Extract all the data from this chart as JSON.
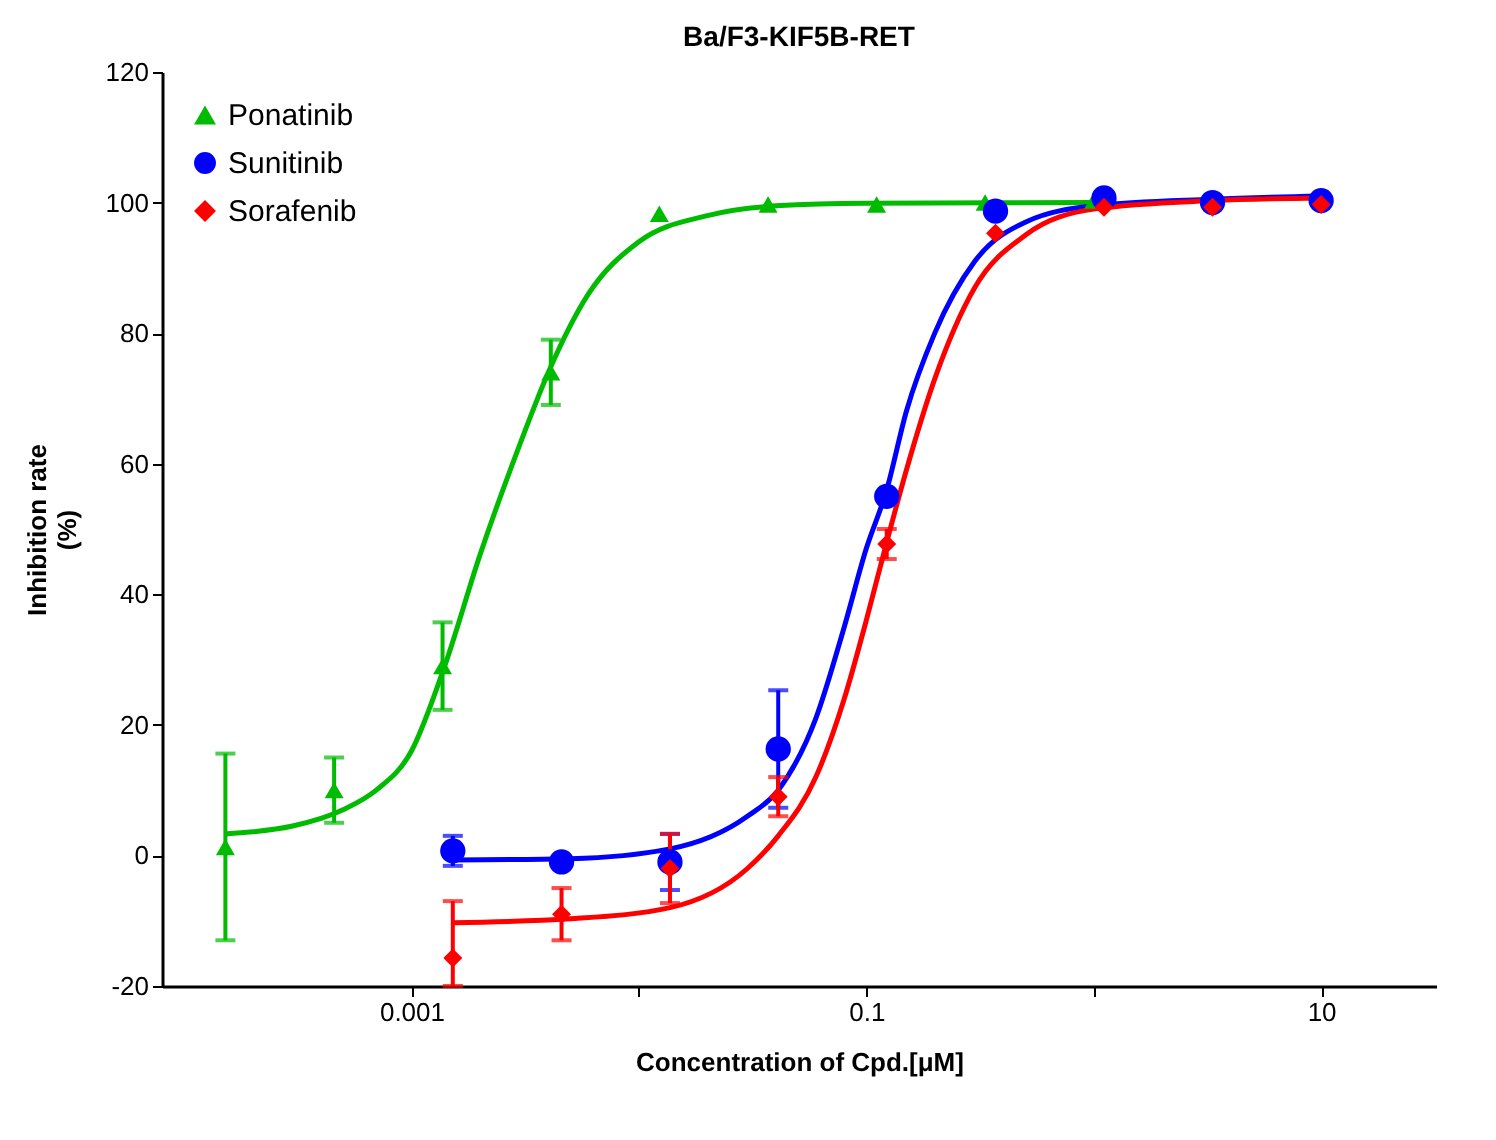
{
  "chart_data": {
    "type": "scatter",
    "title": "Ba/F3-KIF5B-RET",
    "xlabel": "Concentration of Cpd.[μM]",
    "ylabel": "Inhibition rate\n(%)",
    "log": "x",
    "grid": false,
    "legend": "top left",
    "xlim": [
      8e-05,
      32
    ],
    "xticks": [
      0.001,
      {
        "value": 0.01,
        "label": null
      },
      0.1,
      {
        "value": 1,
        "label": null
      },
      10
    ],
    "ylim": [
      -20,
      120
    ],
    "yticks": [
      -20,
      0,
      20,
      40,
      60,
      80,
      100,
      120
    ],
    "series": [
      {
        "name": "Ponatinib",
        "marker": "triangle",
        "color": "#00bb00",
        "x": [
          0.000152,
          0.000457,
          0.00137,
          0.0041,
          0.0123,
          0.037,
          0.111,
          0.333,
          1.0
        ],
        "values": [
          1.3,
          10,
          29,
          74,
          98.3,
          99.7,
          99.7,
          100,
          100.3
        ],
        "errors": [
          14.3,
          5,
          6.7,
          5,
          null,
          null,
          null,
          null,
          null
        ]
      },
      {
        "name": "Sunitinib",
        "marker": "circle",
        "color": "#0000ff",
        "x": [
          0.00152,
          0.00457,
          0.0137,
          0.041,
          0.123,
          0.37,
          1.11,
          3.33,
          10
        ],
        "values": [
          0.7,
          -1,
          -1,
          16.3,
          55,
          98.7,
          100.7,
          100,
          100.3
        ],
        "errors": [
          2.3,
          null,
          4.3,
          9,
          null,
          null,
          null,
          null,
          null
        ]
      },
      {
        "name": "Sorafenib",
        "marker": "diamond",
        "color": "#ff0000",
        "x": [
          0.00152,
          0.00457,
          0.0137,
          0.041,
          0.123,
          0.37,
          1.11,
          3.33,
          10
        ],
        "values": [
          -15.7,
          -9,
          -2,
          9,
          47.7,
          95.3,
          99.3,
          99.3,
          99.7
        ],
        "errors": [
          [
            -20,
            -7
          ],
          4,
          5.3,
          3,
          2.3,
          null,
          null,
          null,
          null
        ]
      },
      {
        "type": "line",
        "color": "#00bb00",
        "x": [
          0.00015,
          0.0003,
          0.0005,
          0.0007,
          0.001,
          0.0014,
          0.002,
          0.003,
          0.004,
          0.006,
          0.01,
          0.02,
          0.04,
          0.1,
          1.0
        ],
        "values": [
          3.3,
          4.5,
          7,
          10,
          16,
          29,
          46,
          63,
          74,
          86,
          94,
          98,
          99.5,
          99.9,
          100
        ]
      },
      {
        "type": "line",
        "color": "#0000ff",
        "x": [
          0.00152,
          0.005,
          0.0137,
          0.03,
          0.041,
          0.06,
          0.08,
          0.1,
          0.123,
          0.15,
          0.2,
          0.3,
          0.5,
          1,
          3.33,
          10
        ],
        "values": [
          -0.7,
          -0.5,
          1,
          6,
          10,
          21,
          35,
          47,
          56,
          68,
          80,
          91,
          97,
          99.5,
          100.5,
          101
        ]
      },
      {
        "type": "line",
        "color": "#ff0000",
        "x": [
          0.00152,
          0.005,
          0.0137,
          0.03,
          0.041,
          0.06,
          0.08,
          0.1,
          0.123,
          0.15,
          0.2,
          0.3,
          0.5,
          1,
          3.33,
          10
        ],
        "values": [
          -10.3,
          -9.7,
          -8,
          -2,
          3,
          12,
          24,
          36,
          48,
          59,
          73,
          87,
          95,
          99,
          100.3,
          100.7
        ]
      }
    ]
  }
}
